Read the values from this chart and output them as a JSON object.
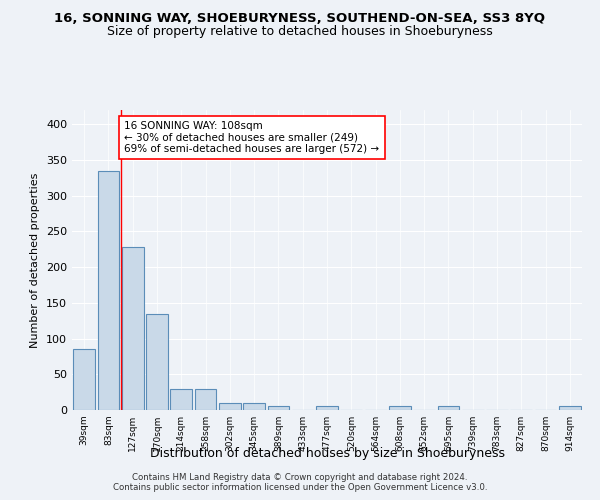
{
  "title": "16, SONNING WAY, SHOEBURYNESS, SOUTHEND-ON-SEA, SS3 8YQ",
  "subtitle": "Size of property relative to detached houses in Shoeburyness",
  "xlabel": "Distribution of detached houses by size in Shoeburyness",
  "ylabel": "Number of detached properties",
  "footer_line1": "Contains HM Land Registry data © Crown copyright and database right 2024.",
  "footer_line2": "Contains public sector information licensed under the Open Government Licence v3.0.",
  "categories": [
    "39sqm",
    "83sqm",
    "127sqm",
    "170sqm",
    "214sqm",
    "258sqm",
    "302sqm",
    "345sqm",
    "389sqm",
    "433sqm",
    "477sqm",
    "520sqm",
    "564sqm",
    "608sqm",
    "652sqm",
    "695sqm",
    "739sqm",
    "783sqm",
    "827sqm",
    "870sqm",
    "914sqm"
  ],
  "values": [
    85,
    335,
    228,
    135,
    30,
    30,
    10,
    10,
    5,
    0,
    5,
    0,
    0,
    5,
    0,
    5,
    0,
    0,
    0,
    0,
    5
  ],
  "bar_color": "#c9d9e8",
  "bar_edge_color": "#5b8db8",
  "red_line_x": 1.5,
  "annotation_text_line1": "16 SONNING WAY: 108sqm",
  "annotation_text_line2": "← 30% of detached houses are smaller (249)",
  "annotation_text_line3": "69% of semi-detached houses are larger (572) →",
  "annotation_box_color": "white",
  "annotation_box_edge_color": "red",
  "ylim": [
    0,
    420
  ],
  "yticks": [
    0,
    50,
    100,
    150,
    200,
    250,
    300,
    350,
    400
  ],
  "background_color": "#eef2f7",
  "grid_color": "white",
  "title_fontsize": 9.5,
  "subtitle_fontsize": 9,
  "xlabel_fontsize": 9,
  "ylabel_fontsize": 8
}
